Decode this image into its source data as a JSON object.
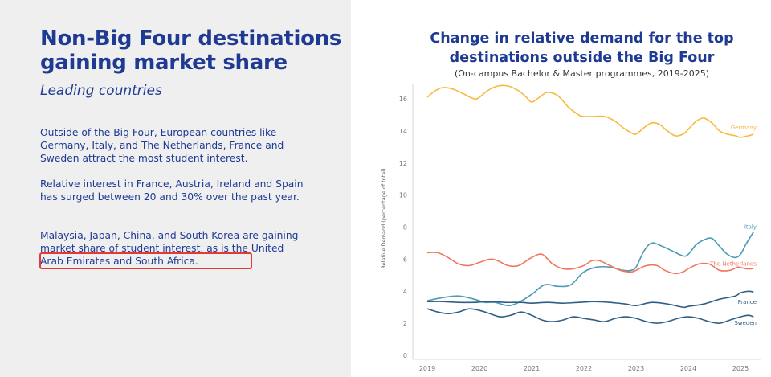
{
  "slide": {
    "heading_line1": "Non-Big Four destinations",
    "heading_line2": "gaining market share",
    "subheading": "Leading countries",
    "paragraph1": "Outside of the Big Four, European countries like Germany, Italy, and The Netherlands, France and Sweden attract the most student interest.",
    "paragraph2": "Relative interest in France, Austria, Ireland and Spain has surged between 20 and 30% over the past year.",
    "paragraph3_start": "Malaysia, Japan, China, and South Korea are gaining market share of student interest, as is the",
    "paragraph3_highlight": "United Arab Emirates and South Africa.",
    "highlight_color": "#e53935",
    "text_color": "#1f3a93"
  },
  "chart_data": {
    "type": "line",
    "title_line1": "Change in relative demand for the top",
    "title_line2": "destinations outside the Big Four",
    "subtitle": "(On-campus Bachelor & Master programmes, 2019-2025)",
    "xlabel": "",
    "ylabel": "Relative Demand (percentage of total)",
    "xlim": [
      2019,
      2025.4
    ],
    "ylim": [
      0,
      17
    ],
    "x_ticks": [
      "2019",
      "2020",
      "2021",
      "2022",
      "2023",
      "2024",
      "2025"
    ],
    "y_ticks": [
      "0",
      "2",
      "4",
      "6",
      "8",
      "10",
      "12",
      "14",
      "16"
    ],
    "grid": false,
    "series": [
      {
        "name": "Germany",
        "color": "#f6b93b",
        "x": [
          2019.0,
          2019.15,
          2019.3,
          2019.5,
          2019.7,
          2019.9,
          2020.0,
          2020.15,
          2020.35,
          2020.55,
          2020.75,
          2020.9,
          2021.0,
          2021.15,
          2021.3,
          2021.5,
          2021.7,
          2021.9,
          2022.0,
          2022.2,
          2022.4,
          2022.6,
          2022.75,
          2022.9,
          2023.0,
          2023.15,
          2023.3,
          2023.45,
          2023.6,
          2023.75,
          2023.9,
          2024.0,
          2024.15,
          2024.3,
          2024.45,
          2024.6,
          2024.75,
          2024.9,
          2025.0,
          2025.15,
          2025.25
        ],
        "values": [
          16.1,
          16.5,
          16.7,
          16.6,
          16.3,
          16.0,
          16.1,
          16.5,
          16.8,
          16.8,
          16.5,
          16.1,
          15.8,
          16.1,
          16.4,
          16.2,
          15.5,
          15.0,
          14.9,
          14.9,
          14.9,
          14.6,
          14.2,
          13.9,
          13.8,
          14.2,
          14.5,
          14.4,
          14.0,
          13.7,
          13.8,
          14.1,
          14.6,
          14.8,
          14.5,
          14.0,
          13.8,
          13.7,
          13.6,
          13.7,
          13.8
        ]
      },
      {
        "name": "Italy",
        "color": "#4a9bb5",
        "x": [
          2019.0,
          2019.3,
          2019.6,
          2019.9,
          2020.1,
          2020.3,
          2020.55,
          2020.75,
          2021.0,
          2021.25,
          2021.5,
          2021.75,
          2022.0,
          2022.25,
          2022.5,
          2022.75,
          2022.9,
          2023.0,
          2023.15,
          2023.3,
          2023.5,
          2023.7,
          2023.9,
          2024.0,
          2024.15,
          2024.3,
          2024.45,
          2024.6,
          2024.75,
          2024.9,
          2025.0,
          2025.1,
          2025.25
        ],
        "values": [
          3.4,
          3.6,
          3.7,
          3.5,
          3.3,
          3.3,
          3.1,
          3.3,
          3.8,
          4.4,
          4.3,
          4.4,
          5.2,
          5.5,
          5.5,
          5.3,
          5.3,
          5.5,
          6.5,
          7.0,
          6.8,
          6.5,
          6.2,
          6.3,
          6.9,
          7.2,
          7.3,
          6.8,
          6.3,
          6.1,
          6.3,
          6.9,
          7.7
        ]
      },
      {
        "name": "The Netherlands",
        "color": "#f0775e",
        "x": [
          2019.0,
          2019.2,
          2019.4,
          2019.6,
          2019.8,
          2020.0,
          2020.2,
          2020.35,
          2020.55,
          2020.75,
          2021.0,
          2021.2,
          2021.4,
          2021.6,
          2021.8,
          2022.0,
          2022.15,
          2022.3,
          2022.5,
          2022.7,
          2022.9,
          2023.0,
          2023.2,
          2023.4,
          2023.55,
          2023.75,
          2023.9,
          2024.0,
          2024.2,
          2024.4,
          2024.6,
          2024.8,
          2024.95,
          2025.1,
          2025.25
        ],
        "values": [
          6.4,
          6.4,
          6.1,
          5.7,
          5.6,
          5.8,
          6.0,
          5.9,
          5.6,
          5.6,
          6.1,
          6.3,
          5.7,
          5.4,
          5.4,
          5.6,
          5.9,
          5.9,
          5.6,
          5.3,
          5.2,
          5.3,
          5.6,
          5.6,
          5.3,
          5.1,
          5.2,
          5.4,
          5.7,
          5.7,
          5.3,
          5.3,
          5.5,
          5.4,
          5.4
        ]
      },
      {
        "name": "France",
        "color": "#2f5f86",
        "x": [
          2019.0,
          2019.3,
          2019.6,
          2019.9,
          2020.2,
          2020.5,
          2020.8,
          2021.0,
          2021.3,
          2021.6,
          2021.9,
          2022.2,
          2022.5,
          2022.8,
          2023.0,
          2023.3,
          2023.6,
          2023.9,
          2024.0,
          2024.3,
          2024.6,
          2024.9,
          2025.0,
          2025.15,
          2025.25
        ],
        "values": [
          3.35,
          3.35,
          3.3,
          3.3,
          3.35,
          3.3,
          3.3,
          3.25,
          3.3,
          3.25,
          3.3,
          3.35,
          3.3,
          3.2,
          3.1,
          3.3,
          3.2,
          3.0,
          3.05,
          3.2,
          3.5,
          3.7,
          3.9,
          4.0,
          3.95
        ]
      },
      {
        "name": "Sweden",
        "color": "#2f5f86",
        "x": [
          2019.0,
          2019.2,
          2019.4,
          2019.6,
          2019.8,
          2020.0,
          2020.2,
          2020.4,
          2020.6,
          2020.8,
          2021.0,
          2021.2,
          2021.4,
          2021.6,
          2021.8,
          2022.0,
          2022.2,
          2022.4,
          2022.6,
          2022.8,
          2023.0,
          2023.2,
          2023.4,
          2023.6,
          2023.8,
          2024.0,
          2024.2,
          2024.4,
          2024.6,
          2024.8,
          2025.0,
          2025.15,
          2025.25
        ],
        "values": [
          2.9,
          2.7,
          2.6,
          2.7,
          2.9,
          2.8,
          2.6,
          2.4,
          2.5,
          2.7,
          2.5,
          2.2,
          2.1,
          2.2,
          2.4,
          2.3,
          2.2,
          2.1,
          2.3,
          2.4,
          2.3,
          2.1,
          2.0,
          2.1,
          2.3,
          2.4,
          2.3,
          2.1,
          2.0,
          2.2,
          2.4,
          2.5,
          2.4
        ]
      }
    ]
  }
}
